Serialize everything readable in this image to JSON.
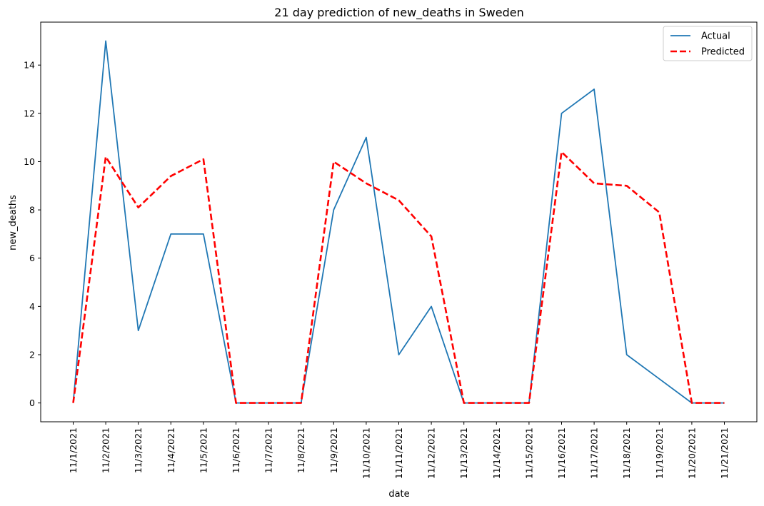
{
  "chart_data": {
    "type": "line",
    "title": "21 day prediction of new_deaths in Sweden",
    "xlabel": "date",
    "ylabel": "new_deaths",
    "categories": [
      "11/1/2021",
      "11/2/2021",
      "11/3/2021",
      "11/4/2021",
      "11/5/2021",
      "11/6/2021",
      "11/7/2021",
      "11/8/2021",
      "11/9/2021",
      "11/10/2021",
      "11/11/2021",
      "11/12/2021",
      "11/13/2021",
      "11/14/2021",
      "11/15/2021",
      "11/16/2021",
      "11/17/2021",
      "11/18/2021",
      "11/19/2021",
      "11/20/2021",
      "11/21/2021"
    ],
    "ylim": [
      -0.78,
      15.78
    ],
    "yticks": [
      0,
      2,
      4,
      6,
      8,
      10,
      12,
      14
    ],
    "grid": false,
    "legend_position": "top-right",
    "series": [
      {
        "name": "Actual",
        "color": "#1f77b4",
        "style": "solid",
        "values": [
          0,
          15,
          3,
          7,
          7,
          0,
          0,
          0,
          8,
          11,
          2,
          4,
          0,
          0,
          0,
          12,
          13,
          2,
          1,
          0,
          0
        ]
      },
      {
        "name": "Predicted",
        "color": "#ff0000",
        "style": "dashed",
        "values": [
          0,
          10.2,
          8.1,
          9.4,
          10.1,
          0,
          0,
          0,
          10.0,
          9.1,
          8.4,
          6.9,
          0,
          0,
          0,
          10.4,
          9.1,
          9.0,
          7.9,
          0,
          0
        ]
      }
    ]
  }
}
